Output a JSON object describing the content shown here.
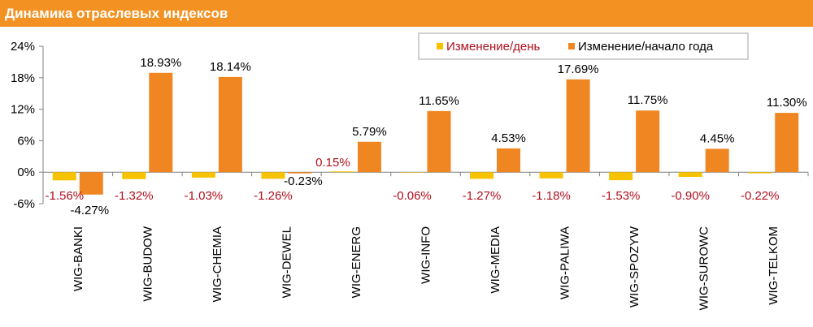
{
  "header": {
    "title": "Динамика отраслевых индексов"
  },
  "colors": {
    "header_bg": "#f39222",
    "daily": "#f7c200",
    "ytd": "#f08622",
    "daily_label": "#b0101e",
    "ytd_label": "#000000",
    "axis": "#808080"
  },
  "legend": {
    "daily": "Изменение/день",
    "ytd": "Изменение/начало года"
  },
  "chart_data": {
    "type": "bar",
    "categories": [
      "WIG-BANKI",
      "WIG-BUDOW",
      "WIG-CHEMIA",
      "WIG-DEWEL",
      "WIG-ENERG",
      "WIG-INFO",
      "WIG-MEDIA",
      "WIG-PALIWA",
      "WIG-SPOZYW",
      "WIG-SUROWC",
      "WIG-TELKOM"
    ],
    "series": [
      {
        "name": "Изменение/день",
        "values": [
          -1.56,
          -1.32,
          -1.03,
          -1.26,
          0.15,
          -0.06,
          -1.27,
          -1.18,
          -1.53,
          -0.9,
          -0.22
        ],
        "labels": [
          "-1.56%",
          "-1.32%",
          "-1.03%",
          "-1.26%",
          "0.15%",
          "-0.06%",
          "-1.27%",
          "-1.18%",
          "-1.53%",
          "-0.90%",
          "-0.22%"
        ]
      },
      {
        "name": "Изменение/начало года",
        "values": [
          -4.27,
          18.93,
          18.14,
          -0.23,
          5.79,
          11.65,
          4.53,
          17.69,
          11.75,
          4.45,
          11.3
        ],
        "labels": [
          "-4.27%",
          "18.93%",
          "18.14%",
          "-0.23%",
          "5.79%",
          "11.65%",
          "4.53%",
          "17.69%",
          "11.75%",
          "4.45%",
          "11.30%"
        ]
      }
    ],
    "ylim": [
      -6,
      24
    ],
    "yticks": [
      -6,
      0,
      6,
      12,
      18,
      24
    ],
    "ytick_labels": [
      "-6%",
      "0%",
      "6%",
      "12%",
      "18%",
      "24%"
    ],
    "legend_position": "top-right",
    "grid": false
  }
}
